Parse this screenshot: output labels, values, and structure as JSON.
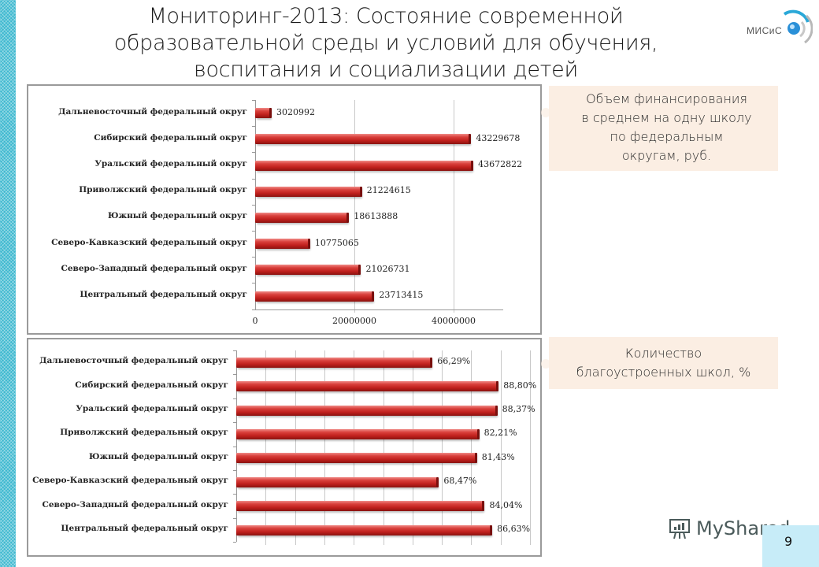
{
  "slide": {
    "title_lines": [
      "Мониторинг-2013: Состояние современной",
      "образовательной среды и условий для обучения,",
      "воспитания и социализации детей"
    ],
    "logo_text": "МИСиС",
    "page_number": "9",
    "watermark": "MyShared",
    "accent_color": "#3cb8cf",
    "bar_color": "#c0201d"
  },
  "callouts": {
    "financing": "Объем финансирования в среднем на одну школу по федеральным округам, руб.",
    "financing_lines": [
      "Объем финансирования",
      "в среднем на одну школу",
      "по федеральным",
      "округам, руб."
    ],
    "schools": "Количество благоустроенных школ, %",
    "schools_lines": [
      "Количество",
      "благоустроенных школ, %"
    ]
  },
  "chart_data": [
    {
      "type": "bar",
      "orientation": "horizontal",
      "title": "Объем финансирования в среднем на одну школу по федеральным округам, руб.",
      "categories": [
        "Дальневосточный федеральный округ",
        "Сибирский федеральный округ",
        "Уральский федеральный округ",
        "Приволжский федеральный округ",
        "Южный федеральный округ",
        "Северо-Кавказский федеральный округ",
        "Северо-Западный федеральный округ",
        "Центральный федеральный округ"
      ],
      "values": [
        3020992,
        43229678,
        43672822,
        21224615,
        18613888,
        10775065,
        21026731,
        23713415
      ],
      "value_labels": [
        "3020992",
        "43229678",
        "43672822",
        "21224615",
        "18613888",
        "10775065",
        "21026731",
        "23713415"
      ],
      "xlabel": "",
      "ylabel": "",
      "xlim": [
        0,
        50000000
      ],
      "xticks": [
        0,
        20000000,
        40000000
      ],
      "xtick_labels": [
        "0",
        "20000000",
        "40000000"
      ],
      "grid": true,
      "legend": null
    },
    {
      "type": "bar",
      "orientation": "horizontal",
      "title": "Количество благоустроенных школ, %",
      "categories": [
        "Дальневосточный федеральный округ",
        "Сибирский федеральный округ",
        "Уральский федеральный округ",
        "Приволжский федеральный округ",
        "Южный федеральный округ",
        "Северо-Кавказский федеральный округ",
        "Северо-Западный федеральный округ",
        "Центральный федеральный округ"
      ],
      "values": [
        66.29,
        88.8,
        88.37,
        82.21,
        81.43,
        68.47,
        84.04,
        86.63
      ],
      "value_labels": [
        "66,29%",
        "88,80%",
        "88,37%",
        "82,21%",
        "81,43%",
        "68,47%",
        "84,04%",
        "86,63%"
      ],
      "xlabel": "",
      "ylabel": "",
      "xlim": [
        0,
        100
      ],
      "xtick_labels": [],
      "grid": true,
      "legend": null
    }
  ]
}
